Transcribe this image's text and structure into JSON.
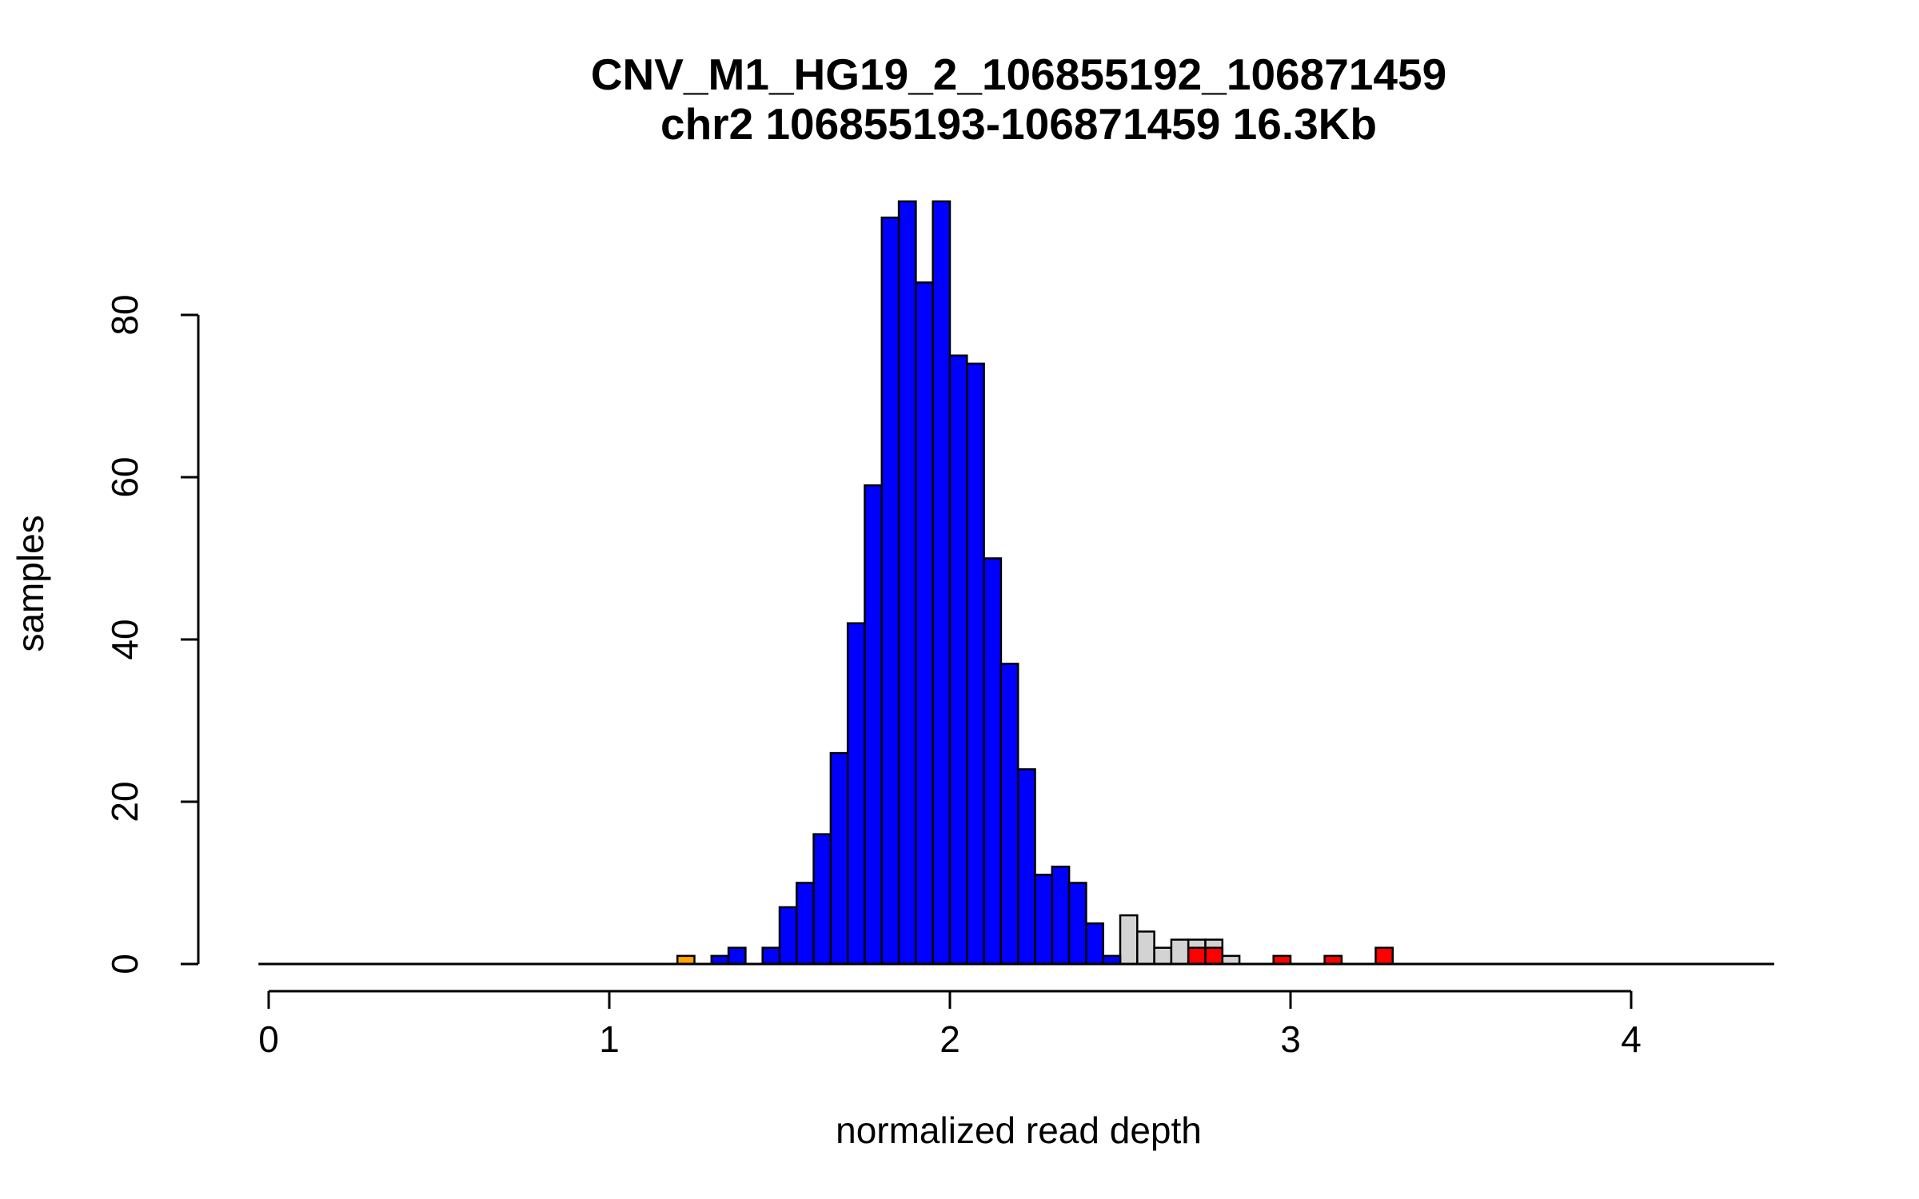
{
  "chart_data": {
    "type": "bar",
    "title": "CNV_M1_HG19_2_106855192_106871459",
    "subtitle": "chr2 106855193-106871459 16.3Kb",
    "xlabel": "normalized read depth",
    "ylabel": "samples",
    "xlim": [
      -0.03,
      4.42
    ],
    "ylim": [
      0,
      95
    ],
    "x_ticks": [
      0,
      1,
      2,
      3,
      4
    ],
    "x_tick_labels": [
      "0",
      "1",
      "2",
      "3",
      "4"
    ],
    "y_ticks": [
      0,
      20,
      40,
      60,
      80
    ],
    "y_tick_labels": [
      "0",
      "20",
      "40",
      "60",
      "80"
    ],
    "bin_width": 0.05,
    "grid": false,
    "colors": {
      "blue": "#0000ff",
      "gray": "#d3d3d3",
      "red": "#ff0000",
      "orange": "#ffa500",
      "axis": "#000000",
      "background": "#ffffff"
    },
    "series": [
      {
        "color": "gray",
        "bins": [
          {
            "x0": 2.5,
            "count": 6
          },
          {
            "x0": 2.55,
            "count": 4
          },
          {
            "x0": 2.6,
            "count": 2
          },
          {
            "x0": 2.65,
            "count": 3
          },
          {
            "x0": 2.7,
            "count": 3
          },
          {
            "x0": 2.75,
            "count": 3
          },
          {
            "x0": 2.8,
            "count": 1
          }
        ]
      },
      {
        "color": "blue",
        "bins": [
          {
            "x0": 1.3,
            "count": 1
          },
          {
            "x0": 1.35,
            "count": 2
          },
          {
            "x0": 1.45,
            "count": 2
          },
          {
            "x0": 1.5,
            "count": 7
          },
          {
            "x0": 1.55,
            "count": 10
          },
          {
            "x0": 1.6,
            "count": 16
          },
          {
            "x0": 1.65,
            "count": 26
          },
          {
            "x0": 1.7,
            "count": 42
          },
          {
            "x0": 1.75,
            "count": 59
          },
          {
            "x0": 1.8,
            "count": 92
          },
          {
            "x0": 1.85,
            "count": 94
          },
          {
            "x0": 1.9,
            "count": 84
          },
          {
            "x0": 1.95,
            "count": 94
          },
          {
            "x0": 2.0,
            "count": 75
          },
          {
            "x0": 2.05,
            "count": 74
          },
          {
            "x0": 2.1,
            "count": 50
          },
          {
            "x0": 2.15,
            "count": 37
          },
          {
            "x0": 2.2,
            "count": 24
          },
          {
            "x0": 2.25,
            "count": 11
          },
          {
            "x0": 2.3,
            "count": 12
          },
          {
            "x0": 2.35,
            "count": 10
          },
          {
            "x0": 2.4,
            "count": 5
          },
          {
            "x0": 2.45,
            "count": 1
          }
        ]
      },
      {
        "color": "red",
        "bins": [
          {
            "x0": 2.7,
            "count": 2
          },
          {
            "x0": 2.75,
            "count": 2
          },
          {
            "x0": 2.95,
            "count": 1
          },
          {
            "x0": 3.1,
            "count": 1
          },
          {
            "x0": 3.25,
            "count": 2
          }
        ]
      },
      {
        "color": "orange",
        "bins": [
          {
            "x0": 1.2,
            "count": 1
          }
        ]
      }
    ]
  }
}
